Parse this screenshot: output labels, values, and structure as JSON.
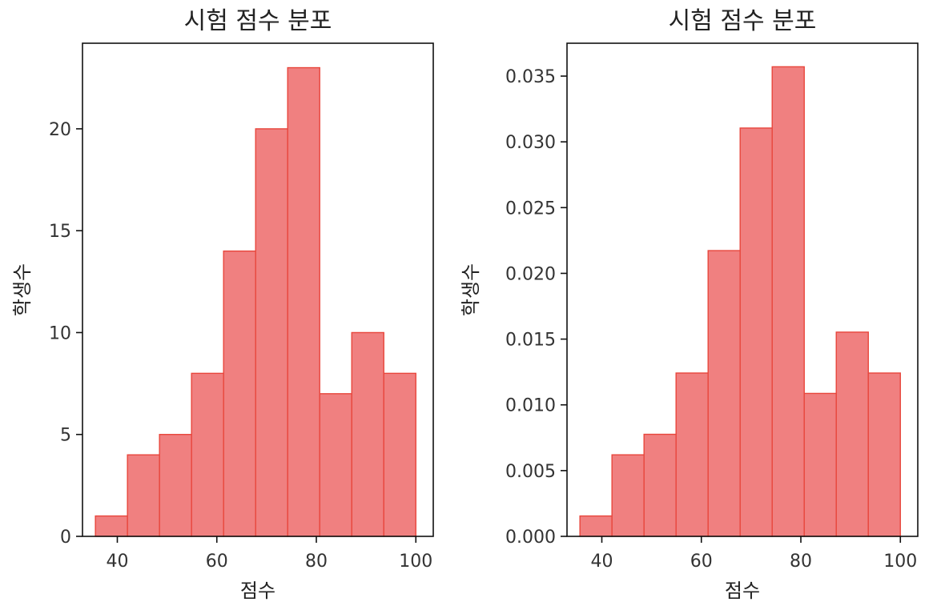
{
  "chart_data": [
    {
      "type": "bar",
      "title": "시험 점수 분포",
      "xlabel": "점수",
      "ylabel": "학생수",
      "bin_edges": [
        35.6,
        42.04,
        48.48,
        54.92,
        61.36,
        67.8,
        74.24,
        80.68,
        87.12,
        93.56,
        100.0
      ],
      "values": [
        1,
        4,
        5,
        8,
        14,
        20,
        23,
        7,
        10,
        8
      ],
      "xlim": [
        33,
        103.5
      ],
      "ylim": [
        0,
        24.2
      ],
      "xticks": [
        40,
        60,
        80,
        100
      ],
      "yticks": [
        0,
        5,
        10,
        15,
        20
      ],
      "xtick_labels": [
        "40",
        "60",
        "80",
        "100"
      ],
      "ytick_labels": [
        "0",
        "5",
        "10",
        "15",
        "20"
      ],
      "bar_color": "#f08080",
      "edge_color": "#e8463c",
      "grid": false
    },
    {
      "type": "bar",
      "title": "시험 점수 분포",
      "xlabel": "점수",
      "ylabel": "학생수",
      "bin_edges": [
        35.6,
        42.04,
        48.48,
        54.92,
        61.36,
        67.8,
        74.24,
        80.68,
        87.12,
        93.56,
        100.0
      ],
      "values": [
        0.00155,
        0.0062,
        0.00776,
        0.01242,
        0.02173,
        0.03105,
        0.03571,
        0.01087,
        0.01553,
        0.01242
      ],
      "xlim": [
        33,
        103.5
      ],
      "ylim": [
        0,
        0.0375
      ],
      "xticks": [
        40,
        60,
        80,
        100
      ],
      "yticks": [
        0,
        0.005,
        0.01,
        0.015,
        0.02,
        0.025,
        0.03,
        0.035
      ],
      "xtick_labels": [
        "40",
        "60",
        "80",
        "100"
      ],
      "ytick_labels": [
        "0.000",
        "0.005",
        "0.010",
        "0.015",
        "0.020",
        "0.025",
        "0.030",
        "0.035"
      ],
      "bar_color": "#f08080",
      "edge_color": "#e8463c",
      "grid": false
    }
  ]
}
